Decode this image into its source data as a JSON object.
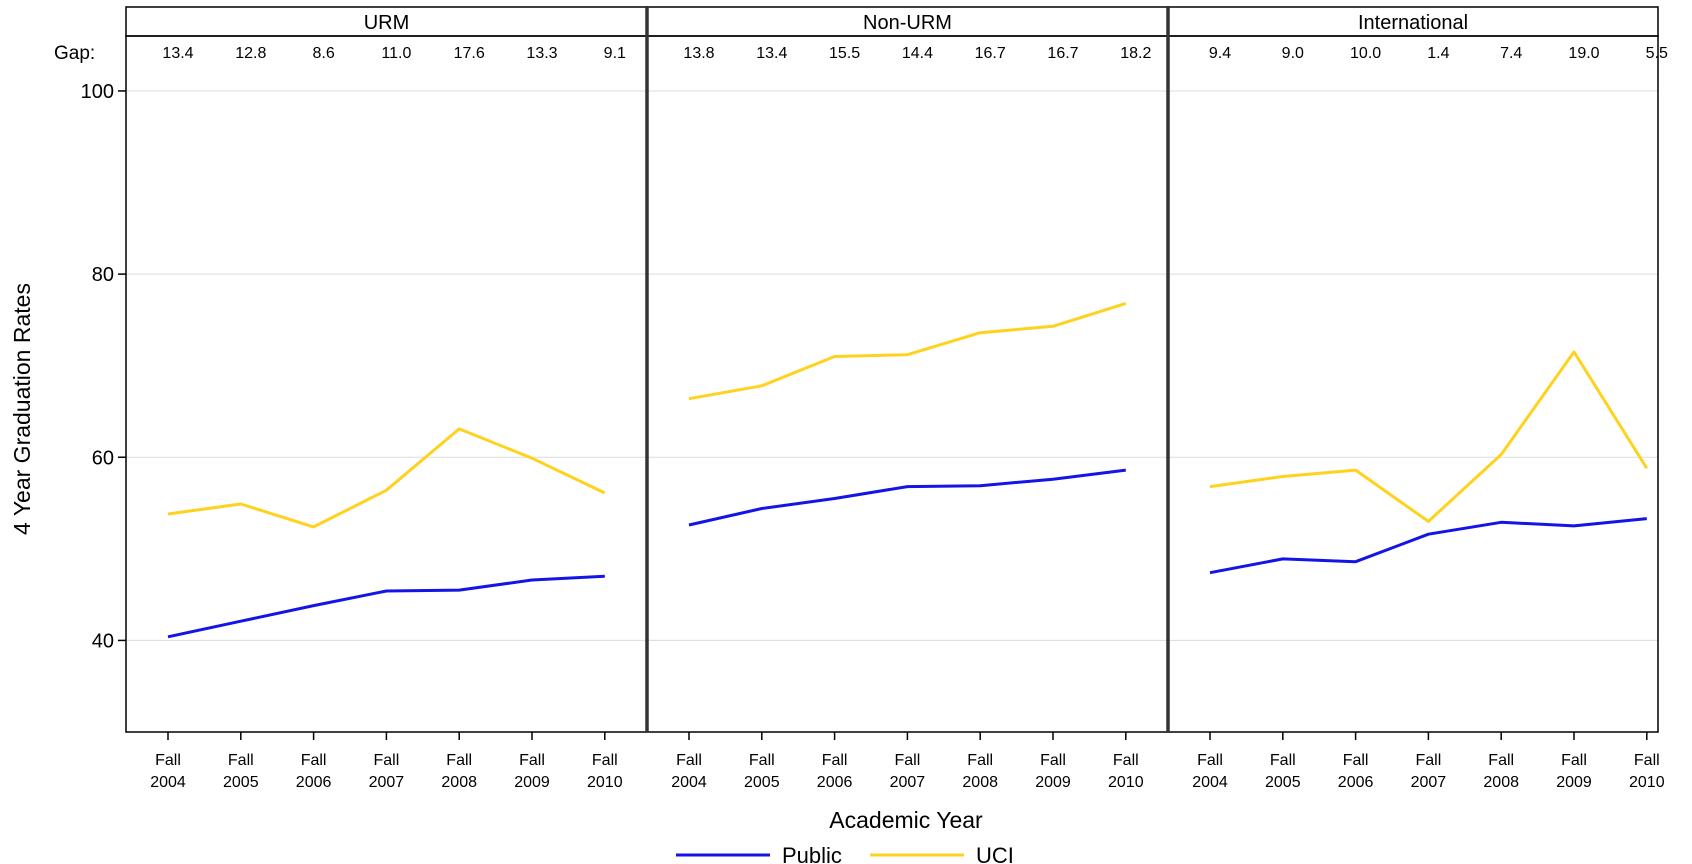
{
  "chart_data": {
    "type": "line",
    "ylabel": "4 Year Graduation Rates",
    "xlabel": "Academic Year",
    "ylim": [
      30,
      106
    ],
    "yticks": [
      40,
      60,
      80,
      100
    ],
    "grid": "horizontal",
    "legend_position": "bottom-center",
    "gap_label": "Gap:",
    "categories": [
      [
        "Fall",
        "2004"
      ],
      [
        "Fall",
        "2005"
      ],
      [
        "Fall",
        "2006"
      ],
      [
        "Fall",
        "2007"
      ],
      [
        "Fall",
        "2008"
      ],
      [
        "Fall",
        "2009"
      ],
      [
        "Fall",
        "2010"
      ]
    ],
    "series_styles": [
      {
        "name": "Public",
        "color": "#1414e6"
      },
      {
        "name": "UCI",
        "color": "#ffd21e"
      }
    ],
    "panels": [
      {
        "title": "URM",
        "gap": [
          "13.4",
          "12.8",
          "8.6",
          "11.0",
          "17.6",
          "13.3",
          "9.1"
        ],
        "series": [
          {
            "name": "Public",
            "values": [
              40.4,
              42.1,
              43.8,
              45.4,
              45.5,
              46.6,
              47.0
            ]
          },
          {
            "name": "UCI",
            "values": [
              53.8,
              54.9,
              52.4,
              56.4,
              63.1,
              59.9,
              56.1
            ]
          }
        ]
      },
      {
        "title": "Non-URM",
        "gap": [
          "13.8",
          "13.4",
          "15.5",
          "14.4",
          "16.7",
          "16.7",
          "18.2"
        ],
        "series": [
          {
            "name": "Public",
            "values": [
              52.6,
              54.4,
              55.5,
              56.8,
              56.9,
              57.6,
              58.6
            ]
          },
          {
            "name": "UCI",
            "values": [
              66.4,
              67.8,
              71.0,
              71.2,
              73.6,
              74.3,
              76.8
            ]
          }
        ]
      },
      {
        "title": "International",
        "gap": [
          "9.4",
          "9.0",
          "10.0",
          "1.4",
          "7.4",
          "19.0",
          "5.5"
        ],
        "series": [
          {
            "name": "Public",
            "values": [
              47.4,
              48.9,
              48.6,
              51.6,
              52.9,
              52.5,
              53.3
            ]
          },
          {
            "name": "UCI",
            "values": [
              56.8,
              57.9,
              58.6,
              53.0,
              60.3,
              71.5,
              58.8
            ]
          }
        ]
      }
    ]
  }
}
